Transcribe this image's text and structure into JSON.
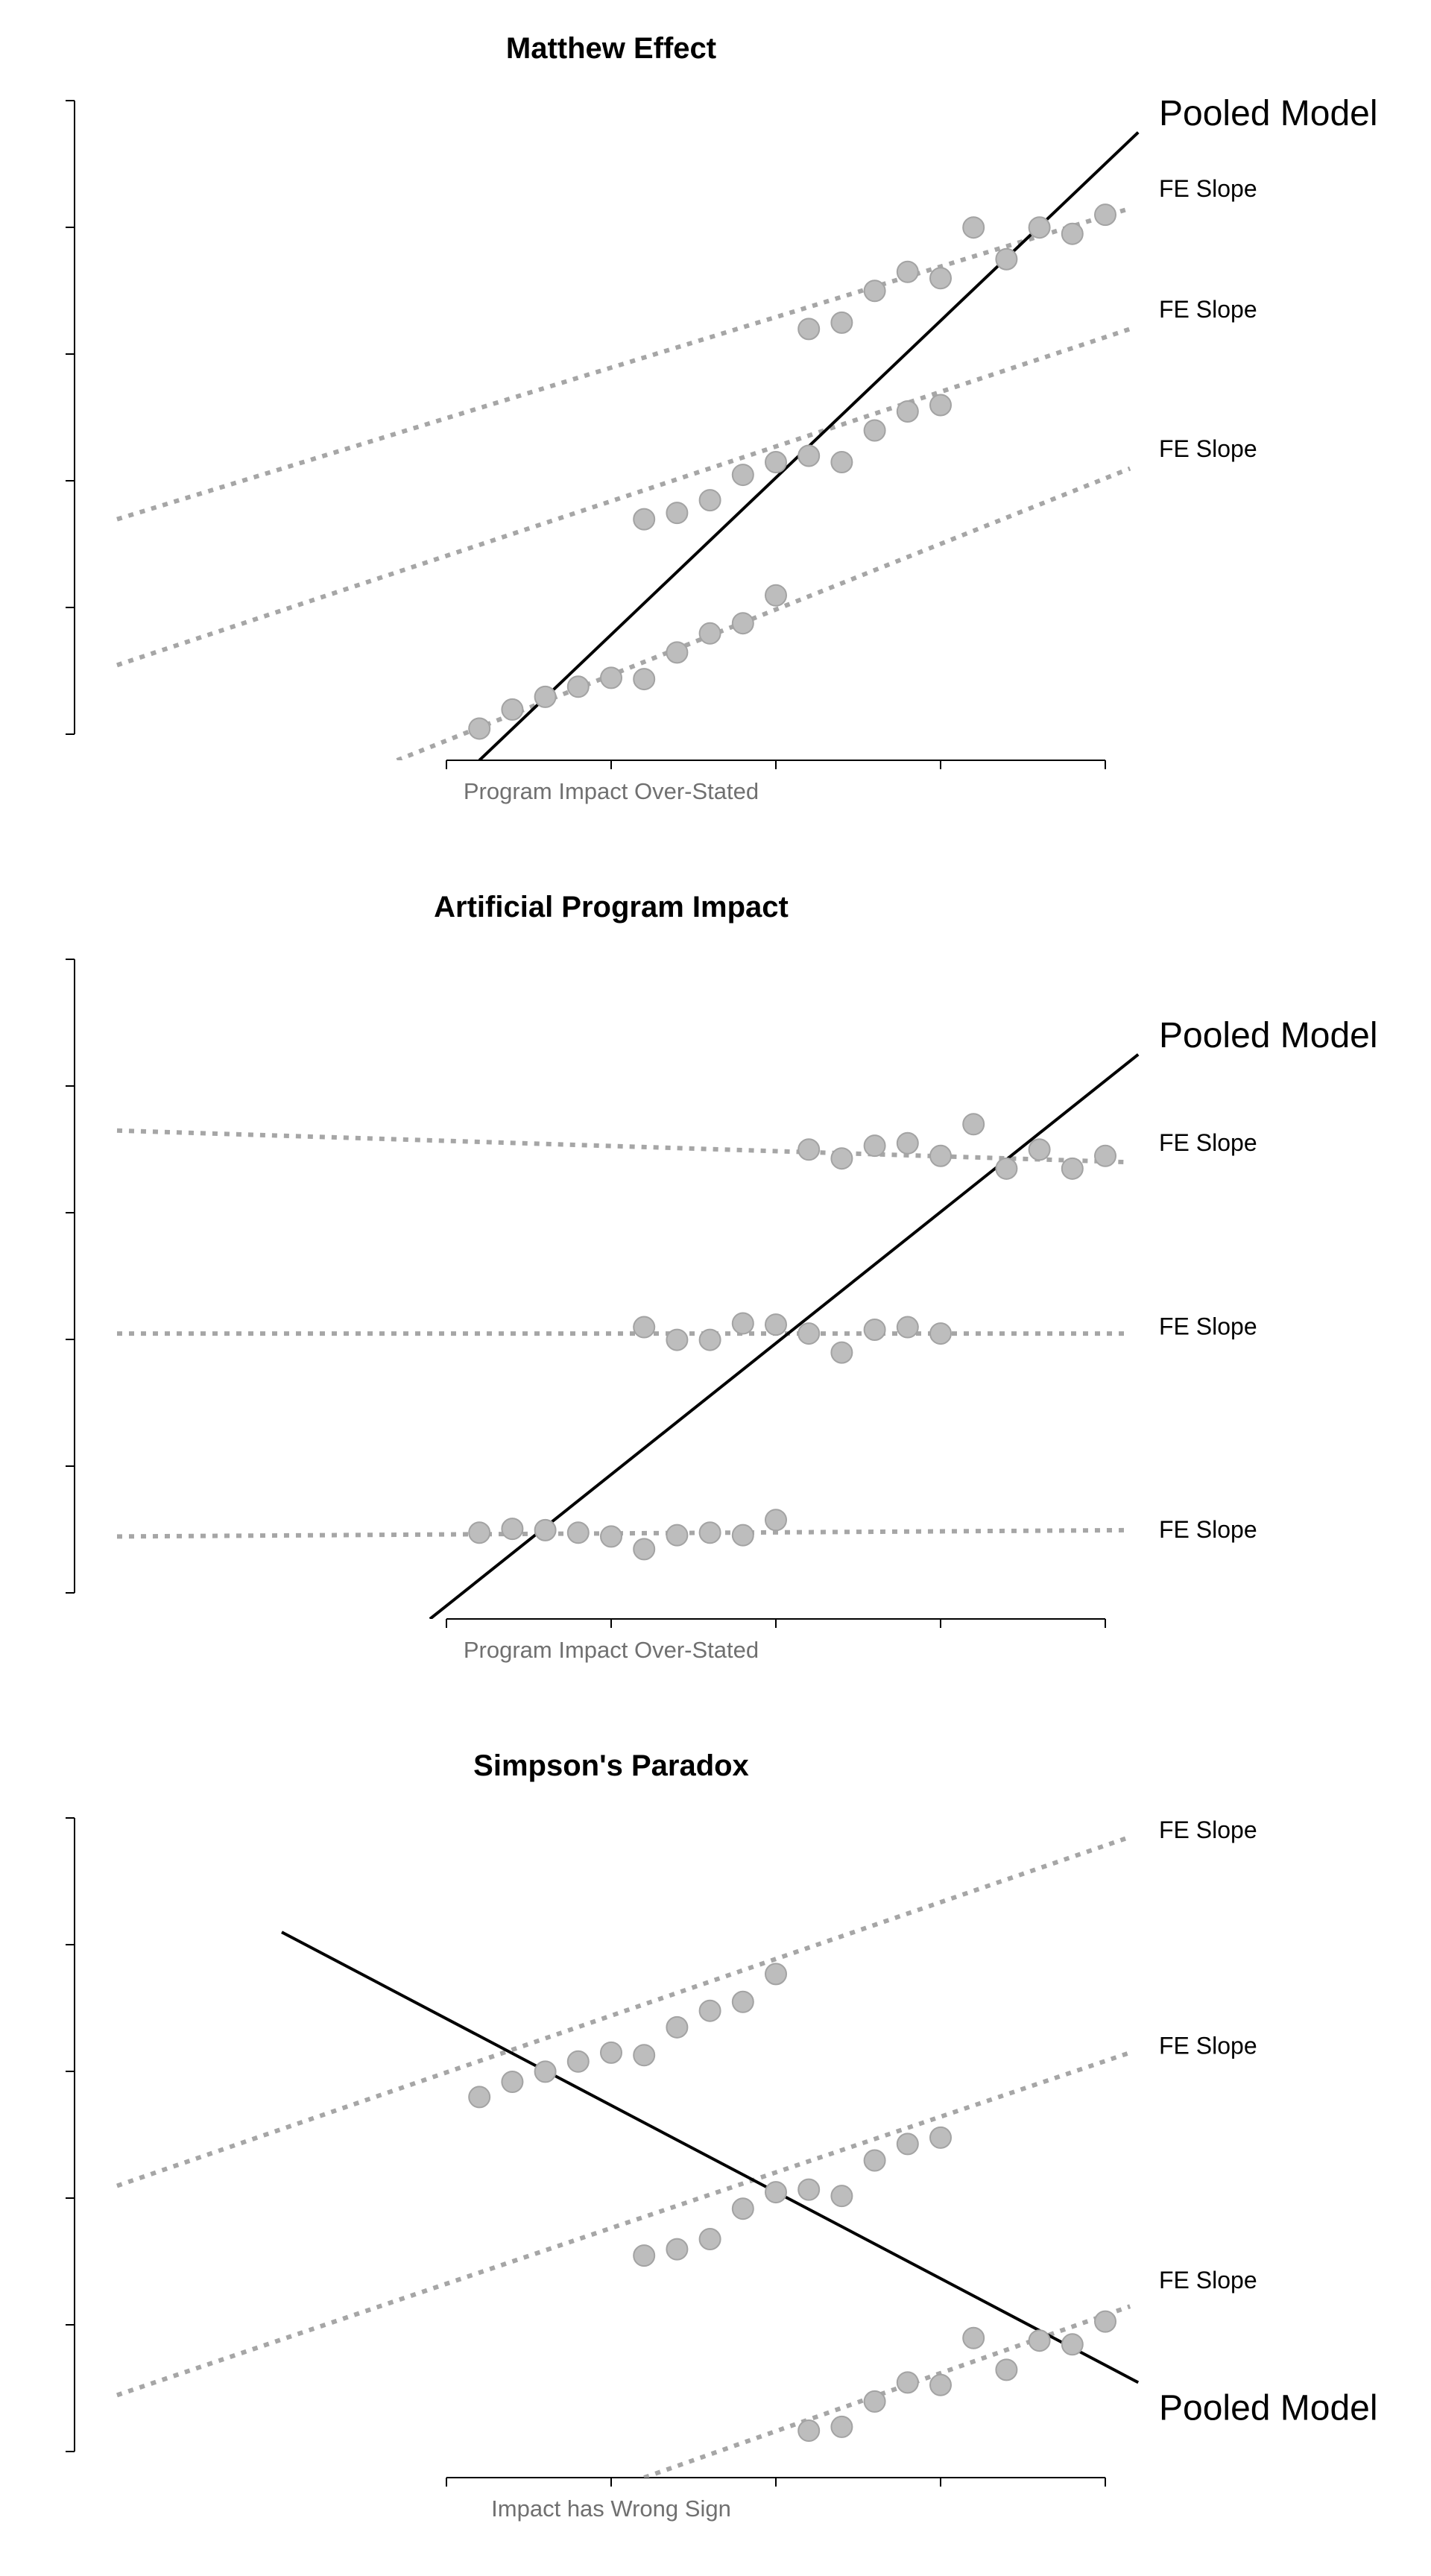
{
  "chart_data": [
    {
      "type": "scatter",
      "title": "Matthew Effect",
      "xlabel": "Program Impact Over-Stated",
      "ylabel": "",
      "xlim": [
        -1.0,
        5.0
      ],
      "ylim": [
        -0.2,
        5.0
      ],
      "xticks": [
        1,
        2,
        3,
        4,
        5
      ],
      "yticks": [
        0,
        1,
        2,
        3,
        4,
        5
      ],
      "pooled_model": {
        "label": "Pooled Model",
        "x": [
          1.2,
          5.2
        ],
        "y": [
          -0.2,
          4.75
        ],
        "label_x": 5.25,
        "label_y": 4.9
      },
      "fe_lines": [
        {
          "label": "FE Slope",
          "x": [
            -1.0,
            5.15
          ],
          "y": [
            1.7,
            4.15
          ],
          "label_y": 4.3
        },
        {
          "label": "FE Slope",
          "x": [
            -1.0,
            5.15
          ],
          "y": [
            0.55,
            3.2
          ],
          "label_y": 3.35
        },
        {
          "label": "FE Slope",
          "x": [
            0.7,
            5.15
          ],
          "y": [
            -0.2,
            2.1
          ],
          "label_y": 2.25
        }
      ],
      "series": [
        {
          "x": [
            3.2,
            3.4,
            3.6,
            3.8,
            4.0,
            4.2,
            4.4,
            4.6,
            4.8,
            5.0
          ],
          "y": [
            3.2,
            3.25,
            3.5,
            3.65,
            3.6,
            4.0,
            3.75,
            4.0,
            3.95,
            4.1
          ]
        },
        {
          "x": [
            2.2,
            2.4,
            2.6,
            2.8,
            3.0,
            3.2,
            3.4,
            3.6,
            3.8,
            4.0
          ],
          "y": [
            1.7,
            1.75,
            1.85,
            2.05,
            2.15,
            2.2,
            2.15,
            2.4,
            2.55,
            2.6
          ]
        },
        {
          "x": [
            1.2,
            1.4,
            1.6,
            1.8,
            2.0,
            2.2,
            2.4,
            2.6,
            2.8,
            3.0
          ],
          "y": [
            0.05,
            0.2,
            0.3,
            0.38,
            0.45,
            0.44,
            0.65,
            0.8,
            0.88,
            1.1
          ]
        }
      ]
    },
    {
      "type": "scatter",
      "title": "Artificial Program Impact",
      "xlabel": "Program Impact Over-Stated",
      "ylabel": "",
      "xlim": [
        -1.0,
        5.0
      ],
      "ylim": [
        -0.2,
        5.0
      ],
      "xticks": [
        1,
        2,
        3,
        4,
        5
      ],
      "yticks": [
        0,
        1,
        2,
        3,
        4,
        5
      ],
      "pooled_model": {
        "label": "Pooled Model",
        "x": [
          0.9,
          5.2
        ],
        "y": [
          -0.2,
          4.25
        ],
        "label_x": 5.25,
        "label_y": 4.4
      },
      "fe_lines": [
        {
          "label": "FE Slope",
          "x": [
            -1.0,
            5.15
          ],
          "y": [
            3.65,
            3.4
          ],
          "label_y": 3.55
        },
        {
          "label": "FE Slope",
          "x": [
            -1.0,
            5.15
          ],
          "y": [
            2.05,
            2.05
          ],
          "label_y": 2.1
        },
        {
          "label": "FE Slope",
          "x": [
            -1.0,
            5.15
          ],
          "y": [
            0.45,
            0.5
          ],
          "label_y": 0.5
        }
      ],
      "series": [
        {
          "x": [
            3.2,
            3.4,
            3.6,
            3.8,
            4.0,
            4.2,
            4.4,
            4.6,
            4.8,
            5.0
          ],
          "y": [
            3.5,
            3.43,
            3.53,
            3.55,
            3.45,
            3.7,
            3.35,
            3.5,
            3.35,
            3.45
          ]
        },
        {
          "x": [
            2.2,
            2.4,
            2.6,
            2.8,
            3.0,
            3.2,
            3.4,
            3.6,
            3.8,
            4.0
          ],
          "y": [
            2.1,
            2.0,
            2.0,
            2.13,
            2.12,
            2.05,
            1.9,
            2.08,
            2.1,
            2.05
          ]
        },
        {
          "x": [
            1.2,
            1.4,
            1.6,
            1.8,
            2.0,
            2.2,
            2.4,
            2.6,
            2.8,
            3.0
          ],
          "y": [
            0.48,
            0.51,
            0.5,
            0.48,
            0.45,
            0.35,
            0.46,
            0.48,
            0.46,
            0.58
          ]
        }
      ]
    },
    {
      "type": "scatter",
      "title": "Simpson's Paradox",
      "xlabel": "Impact has Wrong Sign",
      "ylabel": "",
      "xlim": [
        -1.0,
        5.0
      ],
      "ylim": [
        -0.2,
        5.0
      ],
      "xticks": [
        1,
        2,
        3,
        4,
        5
      ],
      "yticks": [
        0,
        1,
        2,
        3,
        4,
        5
      ],
      "pooled_model": {
        "label": "Pooled Model",
        "x": [
          0.0,
          5.2
        ],
        "y": [
          4.1,
          0.55
        ],
        "label_x": 5.25,
        "label_y": 0.35
      },
      "fe_lines": [
        {
          "label": "FE Slope",
          "x": [
            -1.0,
            5.15
          ],
          "y": [
            2.1,
            4.85
          ],
          "label_y": 4.9
        },
        {
          "label": "FE Slope",
          "x": [
            -1.0,
            5.15
          ],
          "y": [
            0.45,
            3.15
          ],
          "label_y": 3.2
        },
        {
          "label": "FE Slope",
          "x": [
            2.2,
            5.15
          ],
          "y": [
            -0.2,
            1.15
          ],
          "label_y": 1.35
        }
      ],
      "series": [
        {
          "x": [
            1.2,
            1.4,
            1.6,
            1.8,
            2.0,
            2.2,
            2.4,
            2.6,
            2.8,
            3.0
          ],
          "y": [
            2.8,
            2.92,
            3.0,
            3.08,
            3.15,
            3.13,
            3.35,
            3.48,
            3.55,
            3.77
          ]
        },
        {
          "x": [
            2.2,
            2.4,
            2.6,
            2.8,
            3.0,
            3.2,
            3.4,
            3.6,
            3.8,
            4.0
          ],
          "y": [
            1.55,
            1.6,
            1.68,
            1.92,
            2.05,
            2.07,
            2.02,
            2.3,
            2.43,
            2.48
          ]
        },
        {
          "x": [
            3.2,
            3.4,
            3.6,
            3.8,
            4.0,
            4.2,
            4.4,
            4.6,
            4.8,
            5.0
          ],
          "y": [
            0.17,
            0.2,
            0.4,
            0.55,
            0.53,
            0.9,
            0.65,
            0.88,
            0.85,
            1.03
          ]
        }
      ]
    }
  ]
}
